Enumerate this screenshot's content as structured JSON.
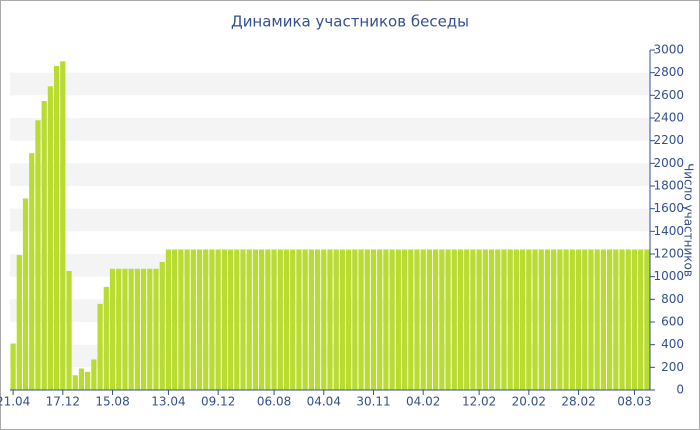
{
  "chart_data": {
    "type": "bar",
    "title": "Динамика участников беседы",
    "y_label": "Число участников",
    "categories": [
      "21.04",
      null,
      null,
      null,
      null,
      null,
      null,
      null,
      "17.12",
      null,
      null,
      null,
      null,
      null,
      null,
      null,
      "15.08",
      null,
      null,
      null,
      null,
      null,
      null,
      null,
      null,
      "13.04",
      null,
      null,
      null,
      null,
      null,
      null,
      null,
      "09.12",
      null,
      null,
      null,
      null,
      null,
      null,
      null,
      null,
      "06.08",
      null,
      null,
      null,
      null,
      null,
      null,
      null,
      "04.04",
      null,
      null,
      null,
      null,
      null,
      null,
      null,
      "30.11",
      null,
      null,
      null,
      null,
      null,
      null,
      null,
      "04.02",
      null,
      null,
      null,
      null,
      null,
      null,
      null,
      null,
      "12.02",
      null,
      null,
      null,
      null,
      null,
      null,
      null,
      "20.02",
      null,
      null,
      null,
      null,
      null,
      null,
      null,
      "28.02",
      null,
      null,
      null,
      null,
      null,
      null,
      null,
      null,
      "08.03",
      null,
      null
    ],
    "values": [
      410,
      1190,
      1690,
      2090,
      2380,
      2550,
      2680,
      2860,
      2900,
      1050,
      130,
      190,
      160,
      270,
      760,
      910,
      1070,
      1070,
      1070,
      1070,
      1070,
      1070,
      1070,
      1070,
      1130,
      1240,
      1240,
      1240,
      1240,
      1240,
      1240,
      1240,
      1240,
      1240,
      1240,
      1240,
      1240,
      1240,
      1240,
      1240,
      1240,
      1240,
      1240,
      1240,
      1240,
      1240,
      1240,
      1240,
      1240,
      1240,
      1240,
      1240,
      1240,
      1240,
      1240,
      1240,
      1240,
      1240,
      1240,
      1240,
      1240,
      1240,
      1240,
      1240,
      1240,
      1240,
      1240,
      1240,
      1240,
      1240,
      1240,
      1240,
      1240,
      1240,
      1240,
      1240,
      1240,
      1240,
      1240,
      1240,
      1240,
      1240,
      1240,
      1240,
      1240,
      1240,
      1240,
      1240,
      1240,
      1240,
      1240,
      1240,
      1240,
      1240,
      1240,
      1240,
      1240,
      1240,
      1240,
      1240,
      1240,
      1240,
      1240
    ],
    "color": "#b8dc30",
    "ylim": [
      0,
      3000
    ],
    "yticks": [
      0,
      200,
      400,
      600,
      800,
      1000,
      1200,
      1400,
      1600,
      1800,
      2000,
      2200,
      2400,
      2600,
      2800,
      3000
    ],
    "grid": true
  }
}
